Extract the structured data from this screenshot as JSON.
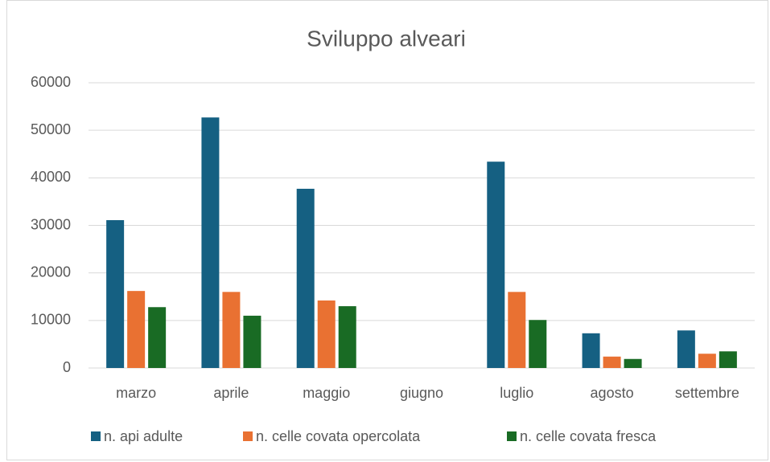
{
  "chart_data": {
    "type": "bar",
    "title": "Sviluppo alveari",
    "categories": [
      "marzo",
      "aprile",
      "maggio",
      "giugno",
      "luglio",
      "agosto",
      "settembre"
    ],
    "series": [
      {
        "name": "n. api adulte",
        "color": "#156082",
        "values": [
          31100,
          52700,
          37700,
          null,
          43400,
          7300,
          7900
        ]
      },
      {
        "name": "n. celle covata opercolata",
        "color": "#E97132",
        "values": [
          16200,
          16000,
          14200,
          null,
          16000,
          2400,
          3000
        ]
      },
      {
        "name": "n. celle covata fresca",
        "color": "#196B24",
        "values": [
          12800,
          11000,
          13000,
          null,
          10100,
          1900,
          3500
        ]
      }
    ],
    "ylim": [
      0,
      60000
    ],
    "yticks": [
      0,
      10000,
      20000,
      30000,
      40000,
      50000,
      60000
    ],
    "grid": true,
    "legend": "bottom"
  }
}
